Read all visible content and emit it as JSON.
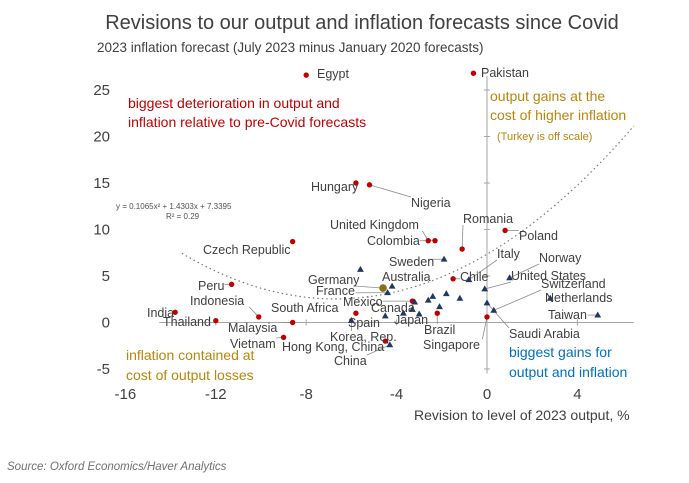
{
  "chart_data": {
    "type": "scatter",
    "title": "Revisions to our output and inflation forecasts since Covid",
    "ylabel": "2023 inflation forecast (July 2023 minus January 2020 forecasts)",
    "xlabel": "Revision to level of 2023 output, %",
    "xlim": [
      -16,
      6.5
    ],
    "ylim": [
      -6.5,
      27
    ],
    "xticks": [
      -16,
      -12,
      -8,
      -4,
      0,
      4
    ],
    "yticks": [
      -5,
      0,
      5,
      10,
      15,
      20,
      25
    ],
    "grid": false,
    "colors": {
      "red": "#c00000",
      "blue": "#1f3864",
      "olive": "#8b6d1a",
      "trend": "#7a7a7a",
      "gold": "#b8860b",
      "sky": "#0070c0"
    },
    "trendline": {
      "equation": "y = 0.1065x² + 1.4303x + 7.3395",
      "r2": "R² = 0.29",
      "coefficients": [
        0.1065,
        1.4303,
        7.3395
      ],
      "x_range": [
        -13.5,
        6.5
      ]
    },
    "points": [
      {
        "name": "Egypt",
        "x": -8.0,
        "y": 26.6,
        "marker": "red"
      },
      {
        "name": "Pakistan",
        "x": -0.6,
        "y": 26.8,
        "marker": "red"
      },
      {
        "name": "Hungary",
        "x": -5.8,
        "y": 15.0,
        "marker": "red"
      },
      {
        "name": "Nigeria",
        "x": -5.2,
        "y": 14.8,
        "marker": "red"
      },
      {
        "name": "United Kingdom",
        "x": -2.6,
        "y": 8.8,
        "marker": "red"
      },
      {
        "name": "Colombia",
        "x": -2.3,
        "y": 8.8,
        "marker": "red"
      },
      {
        "name": "Romania",
        "x": -1.1,
        "y": 7.9,
        "marker": "red"
      },
      {
        "name": "Poland",
        "x": 0.8,
        "y": 9.9,
        "marker": "red"
      },
      {
        "name": "Czech Republic",
        "x": -8.6,
        "y": 8.7,
        "marker": "red"
      },
      {
        "name": "Peru",
        "x": -11.3,
        "y": 4.1,
        "marker": "red"
      },
      {
        "name": "India",
        "x": -13.8,
        "y": 1.1,
        "marker": "red"
      },
      {
        "name": "Thailand",
        "x": -12.0,
        "y": 0.2,
        "marker": "red"
      },
      {
        "name": "Indonesia",
        "x": -10.1,
        "y": 0.6,
        "marker": "red"
      },
      {
        "name": "Malaysia",
        "x": -8.6,
        "y": 0.0,
        "marker": "red"
      },
      {
        "name": "Vietnam",
        "x": -9.0,
        "y": -1.6,
        "marker": "red"
      },
      {
        "name": "South Africa",
        "x": -5.8,
        "y": 1.0,
        "marker": "red"
      },
      {
        "name": "Mexico",
        "x": -3.3,
        "y": 2.3,
        "marker": "red"
      },
      {
        "name": "Chile",
        "x": -1.5,
        "y": 4.7,
        "marker": "red"
      },
      {
        "name": "Brazil",
        "x": -2.2,
        "y": 1.0,
        "marker": "red"
      },
      {
        "name": "Hong Kong, China",
        "x": -4.5,
        "y": -2.0,
        "marker": "red"
      },
      {
        "name": "Singapore",
        "x": 0.0,
        "y": 0.6,
        "marker": "red"
      },
      {
        "name": "Australia",
        "x": -4.2,
        "y": 3.9,
        "marker": "blue"
      },
      {
        "name": "Germany",
        "x": -4.6,
        "y": 3.7,
        "marker": "olive"
      },
      {
        "name": "France",
        "x": -4.4,
        "y": 3.2,
        "marker": "blue"
      },
      {
        "name": "Canada",
        "x": -3.2,
        "y": 2.2,
        "marker": "blue"
      },
      {
        "name": "Japan",
        "x": -3.3,
        "y": 1.4,
        "marker": "blue"
      },
      {
        "name": "Spain",
        "x": -4.5,
        "y": 0.7,
        "marker": "blue"
      },
      {
        "name": "Korea, Rep.",
        "x": -6.0,
        "y": 0.2,
        "marker": "blue"
      },
      {
        "name": "China",
        "x": -4.3,
        "y": -2.4,
        "marker": "blue"
      },
      {
        "name": "Sweden",
        "x": -1.9,
        "y": 6.8,
        "marker": "blue"
      },
      {
        "name": "Italy",
        "x": -0.8,
        "y": 4.6,
        "marker": "blue"
      },
      {
        "name": "United States",
        "x": -0.1,
        "y": 3.6,
        "marker": "blue"
      },
      {
        "name": "Norway",
        "x": 1.0,
        "y": 4.8,
        "marker": "blue"
      },
      {
        "name": "Switzerland",
        "x": 0.3,
        "y": 1.3,
        "marker": "blue"
      },
      {
        "name": "Netherlands",
        "x": 2.8,
        "y": 2.6,
        "marker": "blue"
      },
      {
        "name": "Taiwan",
        "x": 4.9,
        "y": 0.8,
        "marker": "blue"
      },
      {
        "name": "Saudi Arabia",
        "x": 0.0,
        "y": 2.1,
        "marker": "blue"
      },
      {
        "name": "",
        "x": -2.6,
        "y": 2.4,
        "marker": "blue"
      },
      {
        "name": "",
        "x": -2.4,
        "y": 2.8,
        "marker": "blue"
      },
      {
        "name": "",
        "x": -2.1,
        "y": 1.7,
        "marker": "blue"
      },
      {
        "name": "",
        "x": -1.8,
        "y": 3.1,
        "marker": "blue"
      },
      {
        "name": "",
        "x": -3.7,
        "y": 1.0,
        "marker": "blue"
      },
      {
        "name": "",
        "x": -3.0,
        "y": 0.9,
        "marker": "blue"
      },
      {
        "name": "",
        "x": -1.2,
        "y": 2.6,
        "marker": "blue"
      },
      {
        "name": "",
        "x": -5.6,
        "y": 5.7,
        "marker": "blue"
      }
    ],
    "annotations": {
      "top_left": [
        "biggest deterioration in output and",
        "inflation relative to pre-Covid forecasts"
      ],
      "top_right": [
        "output gains at the",
        "cost of higher inflation"
      ],
      "top_right_note": "(Turkey is off scale)",
      "bottom_left": [
        "inflation contained at",
        "cost of output losses"
      ],
      "bottom_right": [
        "biggest gains for",
        "output and inflation"
      ]
    },
    "source": "Source: Oxford Economics/Haver Analytics"
  }
}
